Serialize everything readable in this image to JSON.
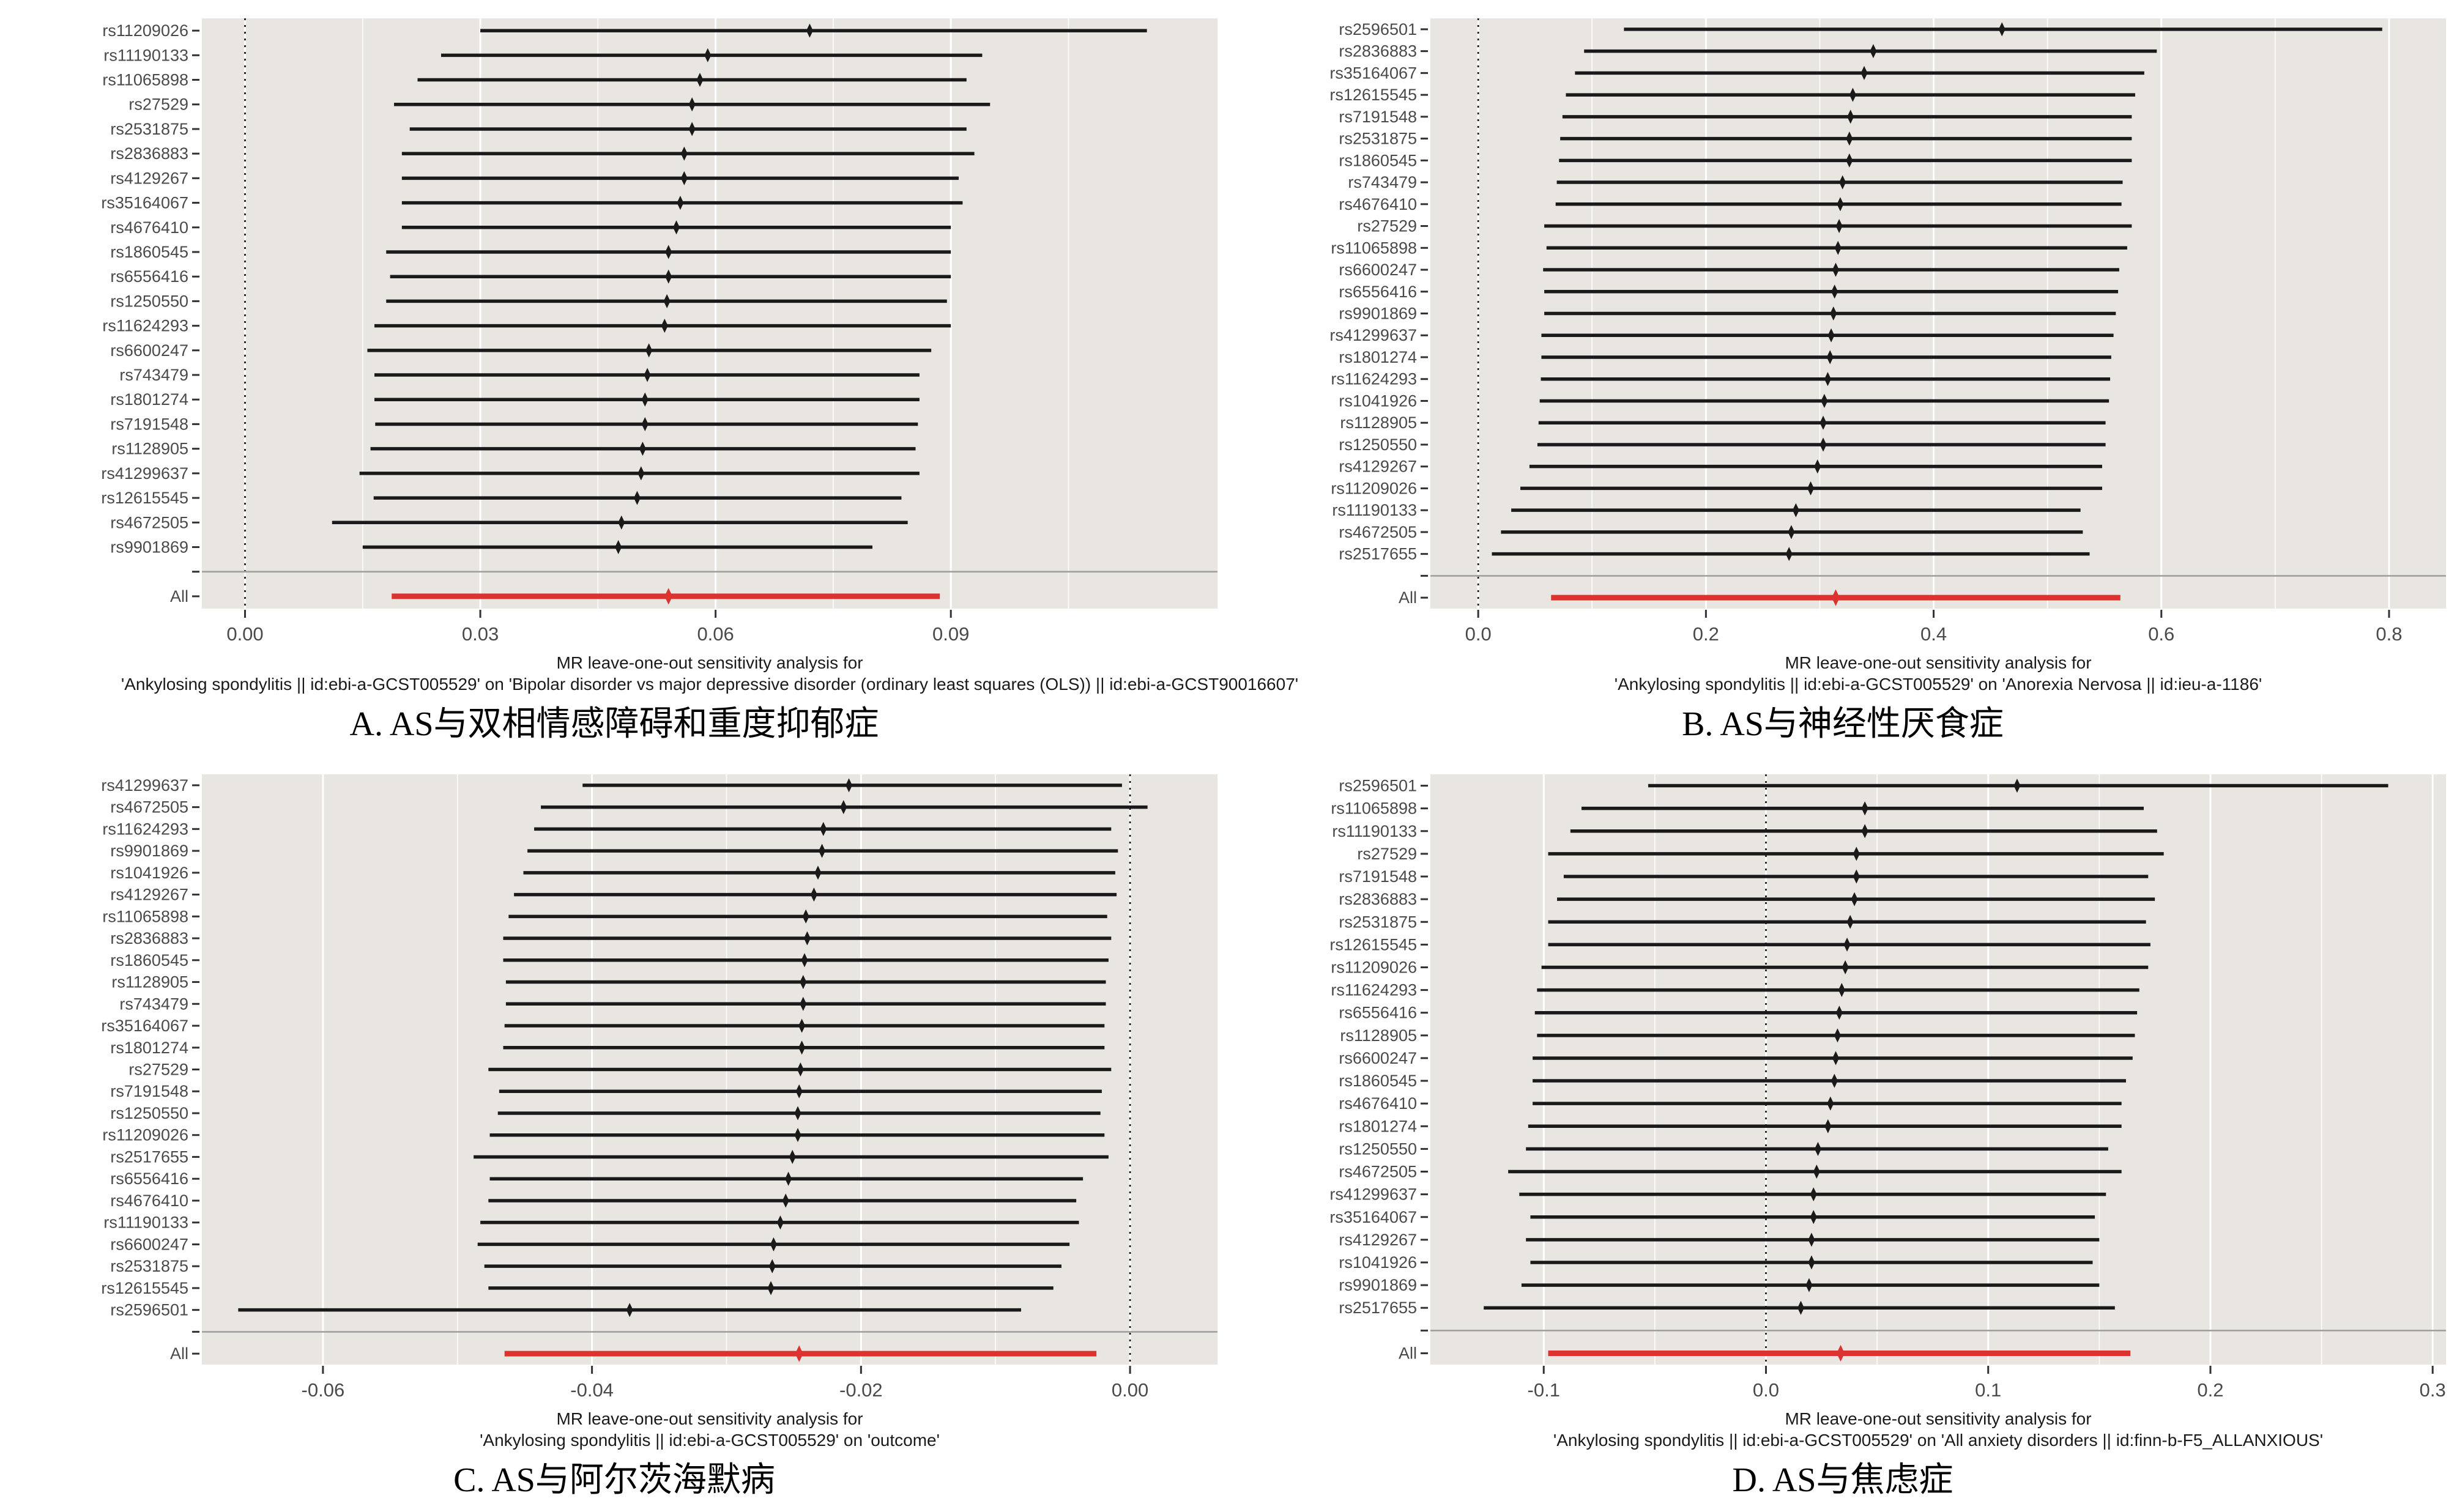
{
  "figure": {
    "background": "#ffffff",
    "plot_bg_color": "#e9e5e1",
    "gridline_color": "#ffffff",
    "ci_color": "#1a1a1a",
    "all_color": "#dc3330",
    "separator_color": "#a0a0a0",
    "axis_text_color": "#4a4a4a"
  },
  "chart_data": [
    {
      "type": "forest",
      "panel": "A",
      "title": "A. AS与双相情感障碍和重度抑郁症",
      "caption_line1": "MR leave-one-out sensitivity analysis for",
      "caption_line2": "'Ankylosing spondylitis || id:ebi-a-GCST005529' on 'Bipolar disorder vs major depressive disorder (ordinary least squares (OLS)) || id:ebi-a-GCST90016607'",
      "xlim": [
        -0.0055,
        0.124
      ],
      "xticks": [
        0,
        0.03,
        0.06,
        0.09
      ],
      "xtick_labels": [
        "0.00",
        "0.03",
        "0.06",
        "0.09"
      ],
      "xminor": [
        0.015,
        0.045,
        0.075,
        0.105
      ],
      "vline": 0,
      "all_label": "All",
      "all": {
        "value": 0.054,
        "lo": 0.0187,
        "hi": 0.0886
      },
      "rows": [
        {
          "snp": "rs11209026",
          "value": 0.072,
          "lo": 0.03,
          "hi": 0.115
        },
        {
          "snp": "rs11190133",
          "value": 0.059,
          "lo": 0.025,
          "hi": 0.094
        },
        {
          "snp": "rs11065898",
          "value": 0.058,
          "lo": 0.022,
          "hi": 0.092
        },
        {
          "snp": "rs27529",
          "value": 0.057,
          "lo": 0.019,
          "hi": 0.095
        },
        {
          "snp": "rs2531875",
          "value": 0.057,
          "lo": 0.021,
          "hi": 0.092
        },
        {
          "snp": "rs2836883",
          "value": 0.056,
          "lo": 0.02,
          "hi": 0.093
        },
        {
          "snp": "rs4129267",
          "value": 0.056,
          "lo": 0.02,
          "hi": 0.091
        },
        {
          "snp": "rs35164067",
          "value": 0.0555,
          "lo": 0.02,
          "hi": 0.0915
        },
        {
          "snp": "rs4676410",
          "value": 0.055,
          "lo": 0.02,
          "hi": 0.09
        },
        {
          "snp": "rs1860545",
          "value": 0.054,
          "lo": 0.018,
          "hi": 0.09
        },
        {
          "snp": "rs6556416",
          "value": 0.054,
          "lo": 0.0185,
          "hi": 0.09
        },
        {
          "snp": "rs1250550",
          "value": 0.0538,
          "lo": 0.018,
          "hi": 0.0895
        },
        {
          "snp": "rs11624293",
          "value": 0.0535,
          "lo": 0.0165,
          "hi": 0.09
        },
        {
          "snp": "rs6600247",
          "value": 0.0515,
          "lo": 0.0156,
          "hi": 0.0875
        },
        {
          "snp": "rs743479",
          "value": 0.0513,
          "lo": 0.0165,
          "hi": 0.086
        },
        {
          "snp": "rs1801274",
          "value": 0.051,
          "lo": 0.0165,
          "hi": 0.086
        },
        {
          "snp": "rs7191548",
          "value": 0.051,
          "lo": 0.0166,
          "hi": 0.0858
        },
        {
          "snp": "rs1128905",
          "value": 0.0507,
          "lo": 0.016,
          "hi": 0.0855
        },
        {
          "snp": "rs41299637",
          "value": 0.0505,
          "lo": 0.0146,
          "hi": 0.086
        },
        {
          "snp": "rs12615545",
          "value": 0.05,
          "lo": 0.0164,
          "hi": 0.0837
        },
        {
          "snp": "rs4672505",
          "value": 0.048,
          "lo": 0.0111,
          "hi": 0.0845
        },
        {
          "snp": "rs9901869",
          "value": 0.0476,
          "lo": 0.015,
          "hi": 0.08
        }
      ]
    },
    {
      "type": "forest",
      "panel": "B",
      "title": "B. AS与神经性厌食症",
      "caption_line1": "MR leave-one-out sensitivity analysis for",
      "caption_line2": "'Ankylosing spondylitis || id:ebi-a-GCST005529' on 'Anorexia Nervosa || id:ieu-a-1186'",
      "xlim": [
        -0.042,
        0.85
      ],
      "xticks": [
        0,
        0.2,
        0.4,
        0.6,
        0.8
      ],
      "xtick_labels": [
        "0.0",
        "0.2",
        "0.4",
        "0.6",
        "0.8"
      ],
      "xminor": [
        0.1,
        0.3,
        0.5,
        0.7
      ],
      "vline": 0,
      "all_label": "All",
      "all": {
        "value": 0.314,
        "lo": 0.064,
        "hi": 0.564
      },
      "rows": [
        {
          "snp": "rs2596501",
          "value": 0.46,
          "lo": 0.128,
          "hi": 0.794
        },
        {
          "snp": "rs2836883",
          "value": 0.347,
          "lo": 0.093,
          "hi": 0.596
        },
        {
          "snp": "rs35164067",
          "value": 0.339,
          "lo": 0.085,
          "hi": 0.585
        },
        {
          "snp": "rs12615545",
          "value": 0.329,
          "lo": 0.077,
          "hi": 0.577
        },
        {
          "snp": "rs7191548",
          "value": 0.327,
          "lo": 0.074,
          "hi": 0.574
        },
        {
          "snp": "rs2531875",
          "value": 0.326,
          "lo": 0.072,
          "hi": 0.574
        },
        {
          "snp": "rs1860545",
          "value": 0.326,
          "lo": 0.071,
          "hi": 0.574
        },
        {
          "snp": "rs743479",
          "value": 0.32,
          "lo": 0.069,
          "hi": 0.566
        },
        {
          "snp": "rs4676410",
          "value": 0.318,
          "lo": 0.068,
          "hi": 0.565
        },
        {
          "snp": "rs27529",
          "value": 0.317,
          "lo": 0.058,
          "hi": 0.574
        },
        {
          "snp": "rs11065898",
          "value": 0.316,
          "lo": 0.06,
          "hi": 0.57
        },
        {
          "snp": "rs6600247",
          "value": 0.314,
          "lo": 0.057,
          "hi": 0.563
        },
        {
          "snp": "rs6556416",
          "value": 0.313,
          "lo": 0.058,
          "hi": 0.562
        },
        {
          "snp": "rs9901869",
          "value": 0.312,
          "lo": 0.058,
          "hi": 0.56
        },
        {
          "snp": "rs41299637",
          "value": 0.31,
          "lo": 0.0555,
          "hi": 0.558
        },
        {
          "snp": "rs1801274",
          "value": 0.309,
          "lo": 0.0555,
          "hi": 0.556
        },
        {
          "snp": "rs11624293",
          "value": 0.307,
          "lo": 0.055,
          "hi": 0.555
        },
        {
          "snp": "rs1041926",
          "value": 0.304,
          "lo": 0.054,
          "hi": 0.554
        },
        {
          "snp": "rs1128905",
          "value": 0.303,
          "lo": 0.053,
          "hi": 0.551
        },
        {
          "snp": "rs1250550",
          "value": 0.303,
          "lo": 0.052,
          "hi": 0.551
        },
        {
          "snp": "rs4129267",
          "value": 0.298,
          "lo": 0.045,
          "hi": 0.548
        },
        {
          "snp": "rs11209026",
          "value": 0.292,
          "lo": 0.037,
          "hi": 0.548
        },
        {
          "snp": "rs11190133",
          "value": 0.279,
          "lo": 0.029,
          "hi": 0.529
        },
        {
          "snp": "rs4672505",
          "value": 0.275,
          "lo": 0.02,
          "hi": 0.531
        },
        {
          "snp": "rs2517655",
          "value": 0.273,
          "lo": 0.012,
          "hi": 0.537
        }
      ]
    },
    {
      "type": "forest",
      "panel": "C",
      "title": "C. AS与阿尔茨海默病",
      "caption_line1": "MR leave-one-out sensitivity analysis for",
      "caption_line2": "'Ankylosing spondylitis || id:ebi-a-GCST005529' on 'outcome'",
      "xlim": [
        -0.069,
        0.0065
      ],
      "xticks": [
        -0.06,
        -0.04,
        -0.02,
        0
      ],
      "xtick_labels": [
        "-0.06",
        "-0.04",
        "-0.02",
        "0.00"
      ],
      "xminor": [
        -0.05,
        -0.03,
        -0.01
      ],
      "vline": 0,
      "all_label": "All",
      "all": {
        "value": -0.0246,
        "lo": -0.0465,
        "hi": -0.0025
      },
      "rows": [
        {
          "snp": "rs41299637",
          "value": -0.0209,
          "lo": -0.0407,
          "hi": -0.0006
        },
        {
          "snp": "rs4672505",
          "value": -0.0213,
          "lo": -0.0438,
          "hi": 0.0013
        },
        {
          "snp": "rs11624293",
          "value": -0.0228,
          "lo": -0.0443,
          "hi": -0.0014
        },
        {
          "snp": "rs9901869",
          "value": -0.0229,
          "lo": -0.0448,
          "hi": -0.0009
        },
        {
          "snp": "rs1041926",
          "value": -0.0232,
          "lo": -0.0451,
          "hi": -0.0011
        },
        {
          "snp": "rs4129267",
          "value": -0.0235,
          "lo": -0.0458,
          "hi": -0.001
        },
        {
          "snp": "rs11065898",
          "value": -0.0241,
          "lo": -0.0462,
          "hi": -0.0017
        },
        {
          "snp": "rs2836883",
          "value": -0.024,
          "lo": -0.0466,
          "hi": -0.0014
        },
        {
          "snp": "rs1860545",
          "value": -0.0242,
          "lo": -0.0466,
          "hi": -0.0016
        },
        {
          "snp": "rs1128905",
          "value": -0.0243,
          "lo": -0.0464,
          "hi": -0.0018
        },
        {
          "snp": "rs743479",
          "value": -0.0243,
          "lo": -0.0464,
          "hi": -0.0018
        },
        {
          "snp": "rs35164067",
          "value": -0.0244,
          "lo": -0.0465,
          "hi": -0.0019
        },
        {
          "snp": "rs1801274",
          "value": -0.0244,
          "lo": -0.0466,
          "hi": -0.0019
        },
        {
          "snp": "rs27529",
          "value": -0.0245,
          "lo": -0.0477,
          "hi": -0.0014
        },
        {
          "snp": "rs7191548",
          "value": -0.0246,
          "lo": -0.0469,
          "hi": -0.0021
        },
        {
          "snp": "rs1250550",
          "value": -0.0247,
          "lo": -0.047,
          "hi": -0.0022
        },
        {
          "snp": "rs11209026",
          "value": -0.0247,
          "lo": -0.0476,
          "hi": -0.0019
        },
        {
          "snp": "rs2517655",
          "value": -0.0251,
          "lo": -0.0488,
          "hi": -0.0016
        },
        {
          "snp": "rs6556416",
          "value": -0.0254,
          "lo": -0.0476,
          "hi": -0.0035
        },
        {
          "snp": "rs4676410",
          "value": -0.0256,
          "lo": -0.0477,
          "hi": -0.004
        },
        {
          "snp": "rs11190133",
          "value": -0.026,
          "lo": -0.0483,
          "hi": -0.0038
        },
        {
          "snp": "rs6600247",
          "value": -0.0265,
          "lo": -0.0485,
          "hi": -0.0045
        },
        {
          "snp": "rs2531875",
          "value": -0.0266,
          "lo": -0.048,
          "hi": -0.0051
        },
        {
          "snp": "rs12615545",
          "value": -0.0267,
          "lo": -0.0477,
          "hi": -0.0057
        },
        {
          "snp": "rs2596501",
          "value": -0.0372,
          "lo": -0.0663,
          "hi": -0.0081
        }
      ]
    },
    {
      "type": "forest",
      "panel": "D",
      "title": "D. AS与焦虑症",
      "caption_line1": "MR leave-one-out sensitivity analysis for",
      "caption_line2": "'Ankylosing spondylitis || id:ebi-a-GCST005529' on 'All anxiety disorders || id:finn-b-F5_ALLANXIOUS'",
      "xlim": [
        -0.151,
        0.306
      ],
      "xticks": [
        -0.1,
        0,
        0.1,
        0.2,
        0.3
      ],
      "xtick_labels": [
        "-0.1",
        "0.0",
        "0.1",
        "0.2",
        "0.3"
      ],
      "xminor": [
        -0.05,
        0.05,
        0.15,
        0.25
      ],
      "vline": 0,
      "all_label": "All",
      "all": {
        "value": 0.0336,
        "lo": -0.098,
        "hi": 0.164
      },
      "rows": [
        {
          "snp": "rs2596501",
          "value": 0.113,
          "lo": -0.053,
          "hi": 0.28
        },
        {
          "snp": "rs11065898",
          "value": 0.0445,
          "lo": -0.083,
          "hi": 0.17
        },
        {
          "snp": "rs11190133",
          "value": 0.0445,
          "lo": -0.088,
          "hi": 0.176
        },
        {
          "snp": "rs27529",
          "value": 0.0407,
          "lo": -0.098,
          "hi": 0.179
        },
        {
          "snp": "rs7191548",
          "value": 0.0407,
          "lo": -0.091,
          "hi": 0.172
        },
        {
          "snp": "rs2836883",
          "value": 0.0398,
          "lo": -0.094,
          "hi": 0.175
        },
        {
          "snp": "rs2531875",
          "value": 0.0379,
          "lo": -0.098,
          "hi": 0.171
        },
        {
          "snp": "rs12615545",
          "value": 0.0365,
          "lo": -0.098,
          "hi": 0.173
        },
        {
          "snp": "rs11209026",
          "value": 0.0357,
          "lo": -0.101,
          "hi": 0.172
        },
        {
          "snp": "rs11624293",
          "value": 0.0341,
          "lo": -0.103,
          "hi": 0.168
        },
        {
          "snp": "rs6556416",
          "value": 0.033,
          "lo": -0.104,
          "hi": 0.167
        },
        {
          "snp": "rs1128905",
          "value": 0.0322,
          "lo": -0.103,
          "hi": 0.166
        },
        {
          "snp": "rs6600247",
          "value": 0.0314,
          "lo": -0.105,
          "hi": 0.165
        },
        {
          "snp": "rs1860545",
          "value": 0.0308,
          "lo": -0.105,
          "hi": 0.162
        },
        {
          "snp": "rs4676410",
          "value": 0.029,
          "lo": -0.105,
          "hi": 0.16
        },
        {
          "snp": "rs1801274",
          "value": 0.0279,
          "lo": -0.107,
          "hi": 0.16
        },
        {
          "snp": "rs1250550",
          "value": 0.0234,
          "lo": -0.108,
          "hi": 0.154
        },
        {
          "snp": "rs4672505",
          "value": 0.0228,
          "lo": -0.116,
          "hi": 0.16
        },
        {
          "snp": "rs41299637",
          "value": 0.0214,
          "lo": -0.111,
          "hi": 0.153
        },
        {
          "snp": "rs35164067",
          "value": 0.0214,
          "lo": -0.106,
          "hi": 0.148
        },
        {
          "snp": "rs4129267",
          "value": 0.0205,
          "lo": -0.108,
          "hi": 0.15
        },
        {
          "snp": "rs1041926",
          "value": 0.0205,
          "lo": -0.106,
          "hi": 0.147
        },
        {
          "snp": "rs9901869",
          "value": 0.0194,
          "lo": -0.11,
          "hi": 0.15
        },
        {
          "snp": "rs2517655",
          "value": 0.0157,
          "lo": -0.127,
          "hi": 0.157
        }
      ]
    }
  ]
}
